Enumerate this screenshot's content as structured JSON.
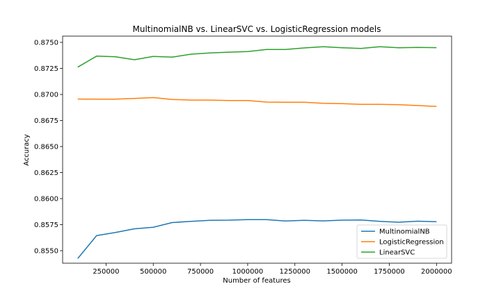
{
  "chart_data": {
    "type": "line",
    "title": "MultinomialNB vs. LinearSVC vs. LogisticRegression models",
    "xlabel": "Number of features",
    "ylabel": "Accuracy",
    "xlim": [
      20000,
      2080000
    ],
    "ylim": [
      0.8538,
      0.8756
    ],
    "x_ticks": [
      250000,
      500000,
      750000,
      1000000,
      1250000,
      1500000,
      1750000,
      2000000
    ],
    "x_tick_labels": [
      "250000",
      "500000",
      "750000",
      "1000000",
      "1250000",
      "1500000",
      "1750000",
      "2000000"
    ],
    "y_ticks": [
      0.855,
      0.8575,
      0.86,
      0.8625,
      0.865,
      0.8675,
      0.87,
      0.8725,
      0.875
    ],
    "y_tick_labels": [
      "0.8550",
      "0.8575",
      "0.8600",
      "0.8625",
      "0.8650",
      "0.8675",
      "0.8700",
      "0.8725",
      "0.8750"
    ],
    "grid": false,
    "legend_position": "lower-right",
    "x": [
      100000,
      200000,
      300000,
      400000,
      500000,
      600000,
      700000,
      800000,
      900000,
      1000000,
      1100000,
      1200000,
      1300000,
      1400000,
      1500000,
      1600000,
      1700000,
      1800000,
      1900000,
      2000000
    ],
    "series": [
      {
        "name": "MultinomialNB",
        "color": "#1f77b4",
        "values": [
          0.85425,
          0.85645,
          0.85675,
          0.8571,
          0.85725,
          0.8577,
          0.85782,
          0.85792,
          0.85793,
          0.85798,
          0.85798,
          0.85785,
          0.85792,
          0.85786,
          0.85793,
          0.85795,
          0.85782,
          0.85773,
          0.85783,
          0.85778
        ]
      },
      {
        "name": "LogisticRegression",
        "color": "#ff7f0e",
        "values": [
          0.86956,
          0.86955,
          0.86955,
          0.86962,
          0.8697,
          0.86952,
          0.86946,
          0.86946,
          0.86942,
          0.86942,
          0.86927,
          0.86925,
          0.86925,
          0.86915,
          0.86912,
          0.86905,
          0.86905,
          0.86902,
          0.86893,
          0.86885
        ]
      },
      {
        "name": "LinearSVC",
        "color": "#2ca02c",
        "values": [
          0.87262,
          0.87368,
          0.87362,
          0.87333,
          0.87365,
          0.87358,
          0.87387,
          0.87398,
          0.87406,
          0.87412,
          0.87432,
          0.87432,
          0.87447,
          0.87458,
          0.87448,
          0.87442,
          0.87458,
          0.87448,
          0.87452,
          0.87449
        ]
      }
    ]
  }
}
